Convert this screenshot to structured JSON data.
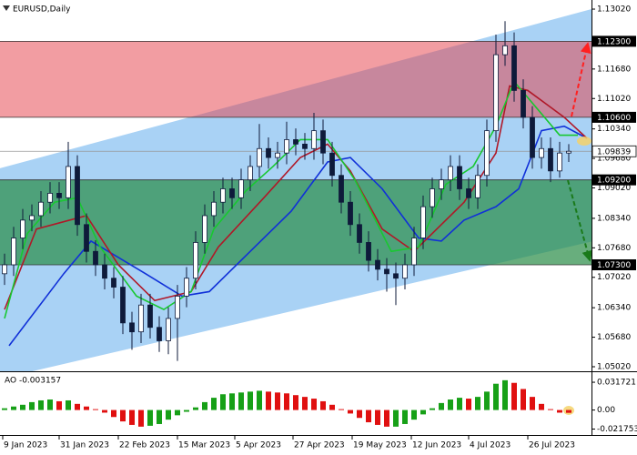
{
  "chart_data": [
    {
      "type": "candlestick",
      "title": "EURUSD,Daily",
      "xlim": [
        -0.5,
        64.5
      ],
      "ylim": [
        1.04918,
        1.13224
      ],
      "open": [
        1.071,
        1.073,
        1.079,
        1.083,
        1.084,
        1.087,
        1.089,
        1.088,
        1.095,
        1.082,
        1.076,
        1.073,
        1.07,
        1.068,
        1.06,
        1.058,
        1.064,
        1.059,
        1.056,
        1.061,
        1.066,
        1.07,
        1.078,
        1.084,
        1.087,
        1.09,
        1.088,
        1.092,
        1.095,
        1.099,
        1.097,
        1.098,
        1.101,
        1.1,
        1.099,
        1.103,
        1.098,
        1.093,
        1.087,
        1.082,
        1.078,
        1.074,
        1.072,
        1.071,
        1.07,
        1.073,
        1.079,
        1.086,
        1.09,
        1.092,
        1.095,
        1.09,
        1.088,
        1.093,
        1.103,
        1.12,
        1.122,
        1.112,
        1.106,
        1.097,
        1.099,
        1.094,
        1.098
      ],
      "high": [
        1.0755,
        1.0815,
        1.0855,
        1.0865,
        1.0895,
        1.0915,
        1.0915,
        1.1005,
        1.0975,
        1.0845,
        1.0785,
        1.0755,
        1.0725,
        1.0705,
        1.0625,
        1.0665,
        1.0665,
        1.0615,
        1.0635,
        1.0685,
        1.0725,
        1.0805,
        1.0865,
        1.0895,
        1.0925,
        1.0925,
        1.0945,
        1.0975,
        1.1045,
        1.1015,
        1.1005,
        1.105,
        1.1035,
        1.1025,
        1.107,
        1.1055,
        1.1005,
        1.0955,
        1.0895,
        1.0845,
        1.0805,
        1.0765,
        1.0745,
        1.0735,
        1.0755,
        1.0815,
        1.0885,
        1.0925,
        1.0945,
        1.0975,
        1.0975,
        1.0925,
        1.0955,
        1.1055,
        1.1245,
        1.1275,
        1.125,
        1.1145,
        1.1085,
        1.1015,
        1.1015,
        1.1005,
        1.1
      ],
      "low": [
        1.0685,
        1.0705,
        1.0765,
        1.0805,
        1.0815,
        1.0845,
        1.0855,
        1.0855,
        1.0795,
        1.0735,
        1.0705,
        1.0675,
        1.0655,
        1.0575,
        1.054,
        1.0555,
        1.0565,
        1.0535,
        1.053,
        1.0515,
        1.0635,
        1.0675,
        1.0755,
        1.0815,
        1.0845,
        1.0855,
        1.0855,
        1.0895,
        1.0925,
        1.0945,
        1.0945,
        1.0955,
        1.0975,
        1.0965,
        1.0965,
        1.0955,
        1.0905,
        1.0845,
        1.0795,
        1.0755,
        1.0715,
        1.0695,
        1.067,
        1.064,
        1.0675,
        1.0705,
        1.0765,
        1.0835,
        1.0875,
        1.0895,
        1.0875,
        1.0855,
        1.0855,
        1.0905,
        1.1005,
        1.1175,
        1.1095,
        1.1035,
        1.0945,
        1.0945,
        1.0915,
        1.0925,
        1.096
      ],
      "close": [
        1.073,
        1.079,
        1.083,
        1.084,
        1.087,
        1.089,
        1.088,
        1.095,
        1.082,
        1.076,
        1.073,
        1.07,
        1.068,
        1.06,
        1.058,
        1.064,
        1.059,
        1.056,
        1.061,
        1.066,
        1.07,
        1.078,
        1.084,
        1.087,
        1.09,
        1.088,
        1.092,
        1.095,
        1.099,
        1.097,
        1.098,
        1.101,
        1.1,
        1.099,
        1.103,
        1.098,
        1.093,
        1.087,
        1.082,
        1.078,
        1.074,
        1.072,
        1.071,
        1.07,
        1.073,
        1.079,
        1.086,
        1.09,
        1.092,
        1.095,
        1.09,
        1.088,
        1.093,
        1.103,
        1.12,
        1.122,
        1.112,
        1.106,
        1.097,
        1.099,
        1.094,
        1.098,
        1.0984
      ],
      "candle_color": "#0e1a3a",
      "channel": {
        "x": [
          -0.5,
          64.5
        ],
        "upper": [
          1.0946,
          1.1302
        ],
        "lower": [
          1.0475,
          1.0782
        ],
        "color": "#a9d2f5"
      },
      "levels": [
        {
          "value": 1.123,
          "label": "1.12300"
        },
        {
          "value": 1.106,
          "label": "1.10600"
        },
        {
          "value": 1.092,
          "label": "1.09200"
        },
        {
          "value": 1.073,
          "label": "1.07300"
        }
      ],
      "zone_colors": [
        "rgba(230,60,70,0.5)",
        null,
        "rgba(40,140,70,0.7)"
      ],
      "current_price": {
        "value": 1.09839,
        "label": "1.09839"
      },
      "lines": [
        {
          "color": "#1030d8",
          "x": [
            0.5,
            6.5,
            9.5,
            15.5,
            19.5,
            22.5,
            27.5,
            31.5,
            35.5,
            38,
            41.5,
            45.5,
            48,
            50.5,
            54,
            56.5,
            59,
            61.5,
            64
          ],
          "values": [
            1.0549,
            1.071,
            1.0783,
            1.071,
            1.066,
            1.067,
            1.077,
            1.085,
            1.096,
            1.097,
            1.09,
            1.079,
            1.0783,
            1.083,
            1.086,
            1.09,
            1.103,
            1.104,
            1.1013
          ]
        },
        {
          "color": "#b01828",
          "x": [
            0,
            3.5,
            9,
            12.5,
            16.5,
            20.5,
            23.5,
            28.5,
            32.5,
            35.5,
            38,
            41.5,
            45,
            47.5,
            50.5,
            54,
            55.5,
            57.5,
            59.5,
            61.5,
            64
          ],
          "values": [
            1.063,
            1.081,
            1.084,
            1.073,
            1.065,
            1.067,
            1.077,
            1.088,
            1.097,
            1.1,
            1.094,
            1.081,
            1.076,
            1.081,
            1.087,
            1.098,
            1.113,
            1.112,
            1.109,
            1.106,
            1.1013
          ]
        },
        {
          "color": "#18c830",
          "x": [
            0,
            2.5,
            5.5,
            8,
            10.5,
            14.5,
            17.5,
            20.5,
            23,
            26.5,
            29.5,
            32.5,
            35.5,
            38.5,
            42.5,
            45.5,
            48.5,
            51.5,
            54,
            56,
            58.5,
            61,
            63
          ],
          "values": [
            1.061,
            1.08,
            1.087,
            1.088,
            1.077,
            1.066,
            1.063,
            1.067,
            1.081,
            1.0895,
            1.095,
            1.101,
            1.101,
            1.092,
            1.076,
            1.077,
            1.091,
            1.095,
            1.104,
            1.114,
            1.108,
            1.102,
            1.102
          ]
        }
      ],
      "yticks": [
        {
          "value": 1.1302,
          "label": "1.13020"
        },
        {
          "value": 1.1168,
          "label": "1.11680"
        },
        {
          "value": 1.1102,
          "label": "1.11020"
        },
        {
          "value": 1.1034,
          "label": "1.10340"
        },
        {
          "value": 1.0968,
          "label": "1.09680"
        },
        {
          "value": 1.0902,
          "label": "1.09020"
        },
        {
          "value": 1.0834,
          "label": "1.08340"
        },
        {
          "value": 1.0768,
          "label": "1.07680"
        },
        {
          "value": 1.0702,
          "label": "1.07020"
        },
        {
          "value": 1.0634,
          "label": "1.06340"
        },
        {
          "value": 1.0568,
          "label": "1.05680"
        },
        {
          "value": 1.0502,
          "label": "1.05020"
        }
      ],
      "xticks": [
        {
          "value": -0.2,
          "label": "9 Jan 2023"
        },
        {
          "value": 6,
          "label": "31 Jan 2023"
        },
        {
          "value": 12.5,
          "label": "22 Feb 2023"
        },
        {
          "value": 19,
          "label": "15 Mar 2023"
        },
        {
          "value": 25.3,
          "label": "5 Apr 2023"
        },
        {
          "value": 31.7,
          "label": "27 Apr 2023"
        },
        {
          "value": 38.2,
          "label": "19 May 2023"
        },
        {
          "value": 44.7,
          "label": "12 Jun 2023"
        },
        {
          "value": 51,
          "label": "4 Jul 2023"
        },
        {
          "value": 57.5,
          "label": "26 Jul 2023"
        }
      ]
    },
    {
      "type": "bar",
      "title": "AO -0.003157",
      "xlim": [
        -0.5,
        64.5
      ],
      "ylim": [
        -0.0285,
        0.0432
      ],
      "values": [
        0.002,
        0.004,
        0.006,
        0.009,
        0.011,
        0.012,
        0.01,
        0.011,
        0.007,
        0.004,
        0.001,
        -0.003,
        -0.008,
        -0.013,
        -0.017,
        -0.019,
        -0.018,
        -0.016,
        -0.011,
        -0.006,
        -0.002,
        0.003,
        0.009,
        0.014,
        0.018,
        0.019,
        0.02,
        0.021,
        0.022,
        0.021,
        0.02,
        0.019,
        0.017,
        0.015,
        0.013,
        0.01,
        0.006,
        0.001,
        -0.004,
        -0.009,
        -0.014,
        -0.017,
        -0.019,
        -0.019,
        -0.016,
        -0.011,
        -0.005,
        0.002,
        0.008,
        0.012,
        0.014,
        0.013,
        0.015,
        0.021,
        0.03,
        0.034,
        0.031,
        0.024,
        0.015,
        0.007,
        0.001,
        -0.003,
        -0.0032
      ],
      "up_color": "#17a017",
      "down_color": "#e01010",
      "yticks": [
        0.031721,
        {
          "value": 0,
          "label": "0.00"
        },
        -0.021753
      ]
    }
  ]
}
